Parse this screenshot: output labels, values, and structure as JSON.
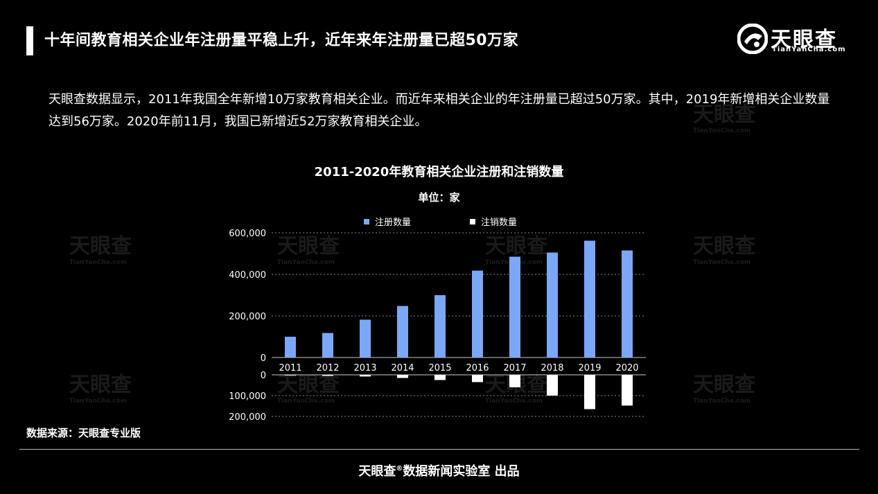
{
  "header": {
    "title": "十年间教育相关企业年注册量平稳上升，近年来年注册量已超50万家",
    "logo_text": "天眼查",
    "logo_sub": "TianYanCha.com"
  },
  "description": "天眼查数据显示，2011年我国全年新增10万家教育相关企业。而近年来相关企业的年注册量已超过50万家。其中，2019年新增相关企业数量达到56万家。2020年前11月，我国已新增近52万家教育相关企业。",
  "chart_data": {
    "type": "bar",
    "title": "2011-2020年教育相关企业注册和注销数量",
    "unit": "单位：家",
    "categories": [
      "2011",
      "2012",
      "2013",
      "2014",
      "2015",
      "2016",
      "2017",
      "2018",
      "2019",
      "2020"
    ],
    "series": [
      {
        "name": "注册数量",
        "color": "#7ba7f7",
        "values": [
          100000,
          118000,
          182000,
          248000,
          300000,
          418000,
          485000,
          505000,
          562000,
          515000
        ]
      },
      {
        "name": "注销数量",
        "color": "#ffffff",
        "values": [
          3000,
          5000,
          8000,
          15000,
          25000,
          35000,
          60000,
          100000,
          165000,
          148000
        ]
      }
    ],
    "y_top": {
      "ylim": [
        0,
        600000
      ],
      "ticks": [
        "600,000",
        "400,000",
        "200,000",
        "0"
      ]
    },
    "y_bottom": {
      "ylim": [
        0,
        200000
      ],
      "ticks": [
        "0",
        "100,000",
        "200,000"
      ]
    },
    "legend_position": "top"
  },
  "source": "数据来源：天眼查专业版",
  "footer": {
    "brand": "天眼查",
    "mark": "®",
    "rest": "数据新闻实验室 出品"
  }
}
